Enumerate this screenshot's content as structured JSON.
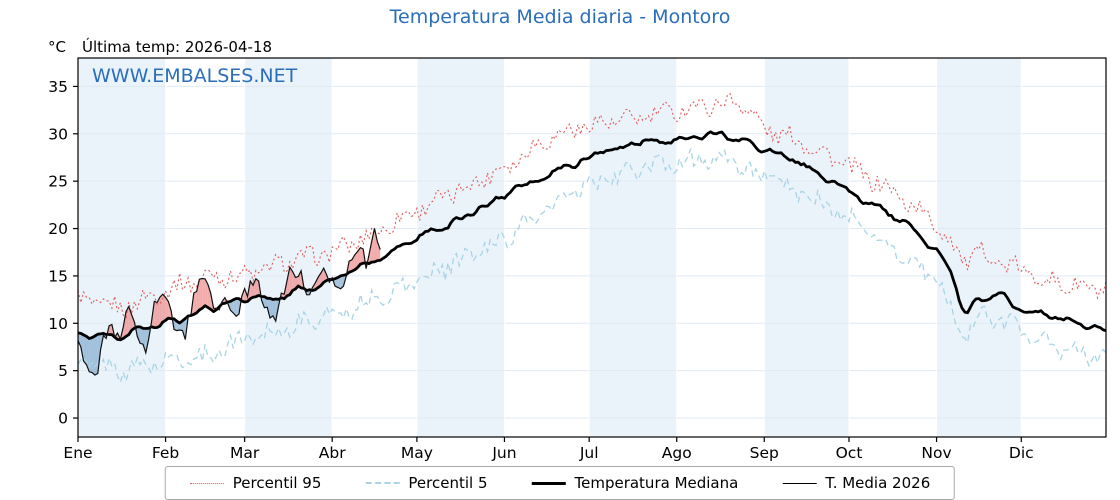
{
  "title": "Temperatura Media diaria - Montoro",
  "header": {
    "unit_label": "°C",
    "last_temp_label": "Última temp: 2026-04-18"
  },
  "watermark": "WWW.EMBALSES.NET",
  "colors": {
    "title": "#2a6ebb",
    "watermark": "#2a6ebb",
    "p95": "#e05a5a",
    "p5": "#a8d4e6",
    "median": "#000000",
    "t2026": "#111111",
    "fill_above": "#ee9090",
    "fill_below": "#88afd0",
    "band": "#ebf3fa",
    "grid": "#dfe9f2",
    "frame": "#000000"
  },
  "chart_data": {
    "type": "line",
    "title": "Temperatura Media diaria - Montoro",
    "ylabel": "°C",
    "ylim": [
      -2,
      38
    ],
    "yticks": {
      "min": 0,
      "max": 35,
      "step": 5
    },
    "days_total": 364,
    "month_labels": [
      "Ene",
      "Feb",
      "Mar",
      "Abr",
      "May",
      "Jun",
      "Jul",
      "Ago",
      "Sep",
      "Oct",
      "Nov",
      "Dic"
    ],
    "month_starts": [
      0,
      31,
      59,
      90,
      120,
      151,
      181,
      212,
      243,
      273,
      304,
      334,
      365
    ],
    "legend": [
      "Percentil 95",
      "Percentil 5",
      "Temperatura Mediana",
      "T. Media 2026"
    ],
    "series": {
      "percentil_95": {
        "noise": 0.9,
        "seed": 1,
        "smooth": false,
        "anchors": [
          [
            0,
            12.5
          ],
          [
            15,
            11.5
          ],
          [
            31,
            13.5
          ],
          [
            46,
            15
          ],
          [
            59,
            15
          ],
          [
            74,
            16.5
          ],
          [
            90,
            17.5
          ],
          [
            105,
            19.5
          ],
          [
            120,
            22
          ],
          [
            135,
            24
          ],
          [
            151,
            26.5
          ],
          [
            166,
            29.5
          ],
          [
            181,
            31
          ],
          [
            196,
            31.5
          ],
          [
            212,
            32.5
          ],
          [
            227,
            33.2
          ],
          [
            235,
            33.4
          ],
          [
            243,
            30.5
          ],
          [
            258,
            29
          ],
          [
            273,
            26.5
          ],
          [
            288,
            24
          ],
          [
            304,
            20.5
          ],
          [
            314,
            16.5
          ],
          [
            319,
            17.5
          ],
          [
            334,
            15.5
          ],
          [
            349,
            14
          ],
          [
            364,
            13.5
          ]
        ]
      },
      "percentil_5": {
        "noise": 0.9,
        "seed": 2,
        "smooth": false,
        "anchors": [
          [
            0,
            6
          ],
          [
            15,
            5
          ],
          [
            31,
            6
          ],
          [
            46,
            6.5
          ],
          [
            59,
            8.5
          ],
          [
            74,
            9.5
          ],
          [
            90,
            11
          ],
          [
            105,
            12.5
          ],
          [
            120,
            14.5
          ],
          [
            135,
            16.5
          ],
          [
            151,
            19
          ],
          [
            166,
            22
          ],
          [
            181,
            24.5
          ],
          [
            196,
            26
          ],
          [
            212,
            27
          ],
          [
            227,
            27.5
          ],
          [
            243,
            25.5
          ],
          [
            258,
            23.5
          ],
          [
            273,
            21
          ],
          [
            288,
            18
          ],
          [
            304,
            14.5
          ],
          [
            314,
            8.5
          ],
          [
            319,
            11
          ],
          [
            334,
            9.5
          ],
          [
            349,
            7
          ],
          [
            364,
            6.5
          ]
        ]
      },
      "mediana": {
        "noise": 0.5,
        "seed": 3,
        "smooth": true,
        "anchors": [
          [
            0,
            9
          ],
          [
            15,
            8.5
          ],
          [
            31,
            10
          ],
          [
            46,
            11.5
          ],
          [
            59,
            12.5
          ],
          [
            74,
            13
          ],
          [
            90,
            14.5
          ],
          [
            105,
            16.5
          ],
          [
            120,
            19
          ],
          [
            135,
            21
          ],
          [
            151,
            23.5
          ],
          [
            166,
            25.5
          ],
          [
            181,
            27.5
          ],
          [
            196,
            29
          ],
          [
            212,
            29.5
          ],
          [
            227,
            30
          ],
          [
            243,
            28.5
          ],
          [
            258,
            26.5
          ],
          [
            273,
            24
          ],
          [
            288,
            21.5
          ],
          [
            304,
            17.5
          ],
          [
            310,
            15
          ],
          [
            314,
            10.5
          ],
          [
            318,
            12.5
          ],
          [
            326,
            13
          ],
          [
            334,
            11.5
          ],
          [
            342,
            11
          ],
          [
            349,
            10.5
          ],
          [
            356,
            10
          ],
          [
            364,
            9
          ]
        ]
      },
      "t_media_2026": {
        "noise": 0.8,
        "seed": 4,
        "smooth": false,
        "anchors": [
          [
            0,
            9
          ],
          [
            3,
            6
          ],
          [
            6,
            3.5
          ],
          [
            9,
            8
          ],
          [
            12,
            10
          ],
          [
            15,
            8
          ],
          [
            18,
            11.5
          ],
          [
            21,
            9
          ],
          [
            24,
            8
          ],
          [
            27,
            12
          ],
          [
            31,
            12.5
          ],
          [
            34,
            10
          ],
          [
            38,
            9
          ],
          [
            42,
            13.5
          ],
          [
            46,
            14.5
          ],
          [
            49,
            11
          ],
          [
            52,
            12.5
          ],
          [
            56,
            10.5
          ],
          [
            59,
            13.5
          ],
          [
            62,
            14.5
          ],
          [
            66,
            12
          ],
          [
            70,
            11
          ],
          [
            74,
            14.5
          ],
          [
            78,
            15.5
          ],
          [
            82,
            13
          ],
          [
            86,
            14.5
          ],
          [
            90,
            15
          ],
          [
            93,
            14
          ],
          [
            96,
            16.5
          ],
          [
            99,
            18
          ],
          [
            102,
            16.5
          ],
          [
            105,
            20
          ],
          [
            107,
            17.5
          ]
        ]
      }
    }
  }
}
